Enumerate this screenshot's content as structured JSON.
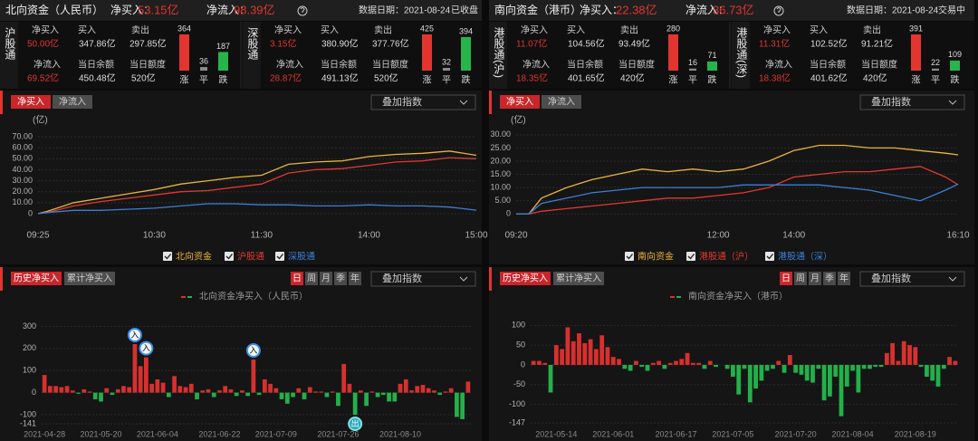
{
  "panels": [
    {
      "header": {
        "title": "北向资金（人民币）",
        "net_buy_label": "净买入：",
        "net_buy": "53.15亿",
        "net_inflow_label": "净流入：",
        "net_inflow": "98.39亿",
        "date": "数据日期：2021-08-24",
        "status": "已收盘"
      },
      "stats": [
        {
          "name": "沪股通",
          "net_buy": {
            "label": "净买入",
            "value": "50.00亿"
          },
          "buy": {
            "label": "买入",
            "value": "347.86亿"
          },
          "sell": {
            "label": "卖出",
            "value": "297.85亿"
          },
          "net_inflow": {
            "label": "净流入",
            "value": "69.52亿"
          },
          "balance": {
            "label": "当日余额",
            "value": "450.48亿"
          },
          "quota": {
            "label": "当日额度",
            "value": "520亿"
          },
          "breadth": {
            "labels": [
              "涨",
              "平",
              "跌"
            ],
            "values": [
              364,
              36,
              187
            ]
          }
        },
        {
          "name": "深股通",
          "net_buy": {
            "label": "净买入",
            "value": "3.15亿"
          },
          "buy": {
            "label": "买入",
            "value": "380.90亿"
          },
          "sell": {
            "label": "卖出",
            "value": "377.76亿"
          },
          "net_inflow": {
            "label": "净流入",
            "value": "28.87亿"
          },
          "balance": {
            "label": "当日余额",
            "value": "491.13亿"
          },
          "quota": {
            "label": "当日额度",
            "value": "520亿"
          },
          "breadth": {
            "labels": [
              "涨",
              "平",
              "跌"
            ],
            "values": [
              425,
              32,
              394
            ]
          }
        }
      ],
      "line_chart": {
        "type": "line",
        "tabs": [
          "净买入",
          "净流入"
        ],
        "overlay": "叠加指数",
        "unit": "(亿)",
        "x": [
          "09:25",
          "09:30",
          "09:45",
          "10:00",
          "10:15",
          "10:30",
          "10:45",
          "11:00",
          "11:15",
          "11:30",
          "13:15",
          "13:30",
          "13:45",
          "14:00",
          "14:15",
          "14:30",
          "14:45",
          "15:00"
        ],
        "xticks": [
          "09:25",
          "10:30",
          "11:30",
          "14:00",
          "15:00"
        ],
        "ylim": [
          -5,
          75
        ],
        "yticks": [
          0,
          {
            "value": 10,
            "label": "10.00"
          },
          {
            "value": 20,
            "label": "20.00"
          },
          {
            "value": 30,
            "label": "30.00"
          },
          {
            "value": 40,
            "label": "40.00"
          },
          {
            "value": 50,
            "label": "50.00"
          },
          {
            "value": 60,
            "label": "60.00"
          },
          {
            "value": 70,
            "label": "70.00"
          }
        ],
        "grid": true,
        "series": [
          {
            "name": "北向资金",
            "color": "#e8b43c",
            "values": [
              0,
              2,
              10,
              14,
              18,
              22,
              27,
              30,
              33,
              35,
              45,
              47,
              48,
              52,
              54,
              55,
              57,
              53.15
            ]
          },
          {
            "name": "沪股通",
            "color": "#dd3a30",
            "values": [
              0,
              1,
              7,
              11,
              14,
              17,
              20,
              21,
              24,
              27,
              37,
              40,
              41,
              44,
              47,
              48,
              51,
              50
            ]
          },
          {
            "name": "深股通",
            "color": "#3c7fd6",
            "values": [
              0,
              1,
              3,
              3,
              4,
              5,
              7,
              9,
              9,
              8,
              8,
              7,
              7,
              8,
              7,
              7,
              6,
              3.15
            ]
          }
        ]
      },
      "bar_chart": {
        "type": "bar",
        "tabs": [
          "历史净买入",
          "累计净买入"
        ],
        "periods": [
          "日",
          "周",
          "月",
          "季",
          "年"
        ],
        "overlay": "叠加指数",
        "legend": "北向资金净买入（人民币）",
        "categories": [
          "2021-04-28",
          null,
          null,
          null,
          null,
          null,
          null,
          null,
          null,
          null,
          "2021-05-20",
          null,
          null,
          null,
          null,
          null,
          null,
          null,
          null,
          null,
          "2021-06-04",
          null,
          null,
          null,
          null,
          null,
          null,
          null,
          null,
          null,
          null,
          "2021-06-22",
          null,
          null,
          null,
          null,
          null,
          null,
          null,
          null,
          null,
          "2021-07-09",
          null,
          null,
          null,
          null,
          null,
          null,
          null,
          null,
          null,
          null,
          "2021-07-26",
          null,
          null,
          null,
          null,
          null,
          null,
          null,
          null,
          null,
          null,
          "2021-08-10",
          null,
          null,
          null,
          null,
          null,
          null,
          null,
          null,
          null,
          null,
          null,
          null
        ],
        "values": [
          80,
          30,
          30,
          25,
          30,
          10,
          -5,
          15,
          5,
          -30,
          -40,
          20,
          -10,
          15,
          30,
          25,
          220,
          120,
          160,
          40,
          60,
          45,
          -20,
          75,
          30,
          25,
          40,
          -30,
          10,
          15,
          -20,
          10,
          30,
          15,
          -15,
          10,
          -15,
          150,
          -10,
          60,
          40,
          20,
          -30,
          -50,
          -20,
          20,
          -30,
          25,
          5,
          5,
          -20,
          5,
          -60,
          130,
          40,
          -100,
          10,
          -60,
          5,
          -20,
          -10,
          -40,
          -40,
          40,
          60,
          10,
          30,
          35,
          20,
          10,
          -10,
          5,
          20,
          -110,
          -120,
          50
        ],
        "markers": [
          null,
          null,
          null,
          null,
          null,
          null,
          null,
          null,
          null,
          null,
          null,
          null,
          null,
          null,
          null,
          null,
          "入",
          null,
          "入",
          null,
          null,
          null,
          null,
          null,
          null,
          null,
          null,
          null,
          null,
          null,
          null,
          null,
          null,
          null,
          null,
          null,
          null,
          "入",
          null,
          null,
          null,
          null,
          null,
          null,
          null,
          null,
          null,
          null,
          null,
          null,
          null,
          null,
          null,
          null,
          null,
          "出",
          null,
          null,
          null,
          null,
          null,
          null,
          null,
          null,
          null,
          null,
          null,
          null,
          null,
          null,
          null,
          null,
          null,
          null,
          null,
          null
        ],
        "ylim": [
          -141,
          310
        ],
        "yticks": [
          -141,
          -100,
          0,
          100,
          200,
          300
        ],
        "grid": true,
        "colors": {
          "positive": "#d8302e",
          "negative": "#23b04a"
        }
      }
    },
    {
      "header": {
        "title": "南向资金（港币）",
        "net_buy_label": "净买入：",
        "net_buy": "22.38亿",
        "net_inflow_label": "净流入：",
        "net_inflow": "36.73亿",
        "date": "数据日期：2021-08-24",
        "status": "交易中"
      },
      "stats": [
        {
          "name": "港股通(沪)",
          "net_buy": {
            "label": "净买入",
            "value": "11.07亿"
          },
          "buy": {
            "label": "买入",
            "value": "104.56亿"
          },
          "sell": {
            "label": "卖出",
            "value": "93.49亿"
          },
          "net_inflow": {
            "label": "净流入",
            "value": "18.35亿"
          },
          "balance": {
            "label": "当日余额",
            "value": "401.65亿"
          },
          "quota": {
            "label": "当日额度",
            "value": "420亿"
          },
          "breadth": {
            "labels": [
              "涨",
              "平",
              "跌"
            ],
            "values": [
              280,
              16,
              71
            ]
          }
        },
        {
          "name": "港股通(深)",
          "net_buy": {
            "label": "净买入",
            "value": "11.31亿"
          },
          "buy": {
            "label": "买入",
            "value": "102.52亿"
          },
          "sell": {
            "label": "卖出",
            "value": "91.21亿"
          },
          "net_inflow": {
            "label": "净流入",
            "value": "18.38亿"
          },
          "balance": {
            "label": "当日余额",
            "value": "401.62亿"
          },
          "quota": {
            "label": "当日额度",
            "value": "420亿"
          },
          "breadth": {
            "labels": [
              "涨",
              "平",
              "跌"
            ],
            "values": [
              391,
              22,
              109
            ]
          }
        }
      ],
      "line_chart": {
        "type": "line",
        "tabs": [
          "净买入",
          "净流入"
        ],
        "overlay": "叠加指数",
        "unit": "(亿)",
        "x": [
          "09:20",
          "09:30",
          "09:40",
          "10:00",
          "10:20",
          "10:40",
          "11:00",
          "11:20",
          "11:40",
          "12:00",
          "13:20",
          "13:40",
          "14:00",
          "14:20",
          "14:40",
          "15:00",
          "15:20",
          "15:40",
          "16:00",
          "16:10"
        ],
        "xticks": [
          "09:20",
          "12:00",
          "14:00",
          "16:10"
        ],
        "ylim": [
          -3,
          32
        ],
        "yticks": [
          0,
          {
            "value": 5,
            "label": "5.00"
          },
          {
            "value": 10,
            "label": "10.00"
          },
          {
            "value": 15,
            "label": "15.00"
          },
          {
            "value": 20,
            "label": "20.00"
          },
          {
            "value": 25,
            "label": "25.00"
          },
          {
            "value": 30,
            "label": "30.00"
          }
        ],
        "grid": true,
        "series": [
          {
            "name": "南向资金",
            "color": "#e8b43c",
            "values": [
              0,
              0,
              6,
              10,
              13,
              15,
              17,
              16,
              17,
              16,
              17,
              20,
              24,
              26,
              26,
              25,
              25,
              24,
              23,
              22.38
            ]
          },
          {
            "name": "港股通（沪）",
            "color": "#dd3a30",
            "values": [
              0,
              0,
              1,
              2,
              3,
              4,
              5,
              6,
              6,
              7,
              8,
              10,
              14,
              15,
              16,
              16,
              17,
              18,
              14,
              11.07
            ]
          },
          {
            "name": "港股通（深）",
            "color": "#3c7fd6",
            "values": [
              0,
              0,
              4,
              6,
              8,
              9,
              10,
              10,
              10,
              10,
              11,
              11,
              11,
              11,
              10,
              9,
              7,
              5,
              9,
              11.31
            ]
          }
        ]
      },
      "bar_chart": {
        "type": "bar",
        "tabs": [
          "历史净买入",
          "累计净买入"
        ],
        "periods": [
          "日",
          "周",
          "月",
          "季",
          "年"
        ],
        "overlay": "叠加指数",
        "legend": "南向资金净买入（港币）",
        "categories": [
          null,
          null,
          null,
          null,
          "2021-05-14",
          null,
          null,
          null,
          null,
          null,
          null,
          null,
          null,
          null,
          "2021-06-01",
          null,
          null,
          null,
          null,
          null,
          null,
          null,
          null,
          null,
          null,
          "2021-06-17",
          null,
          null,
          null,
          null,
          null,
          null,
          null,
          null,
          null,
          "2021-07-05",
          null,
          null,
          null,
          null,
          null,
          null,
          null,
          null,
          null,
          null,
          "2021-07-20",
          null,
          null,
          null,
          null,
          null,
          null,
          null,
          null,
          null,
          "2021-08-04",
          null,
          null,
          null,
          null,
          null,
          null,
          null,
          null,
          null,
          null,
          "2021-08-19",
          null,
          null,
          null,
          null,
          null,
          null,
          null
        ],
        "values": [
          10,
          10,
          5,
          -70,
          50,
          40,
          95,
          60,
          80,
          55,
          65,
          40,
          75,
          45,
          20,
          15,
          -10,
          -15,
          10,
          -5,
          -15,
          5,
          10,
          -10,
          5,
          10,
          15,
          30,
          5,
          5,
          -10,
          10,
          -5,
          0,
          -10,
          -30,
          -75,
          -10,
          -95,
          -60,
          -40,
          -15,
          -10,
          10,
          -20,
          25,
          -20,
          -25,
          -40,
          -45,
          -10,
          -90,
          -80,
          -30,
          -130,
          -55,
          -15,
          -70,
          -10,
          -10,
          -5,
          -5,
          30,
          55,
          10,
          60,
          50,
          45,
          -5,
          -30,
          -40,
          -55,
          -10,
          20,
          10
        ],
        "ylim": [
          -147,
          110
        ],
        "yticks": [
          -147,
          -100,
          -50,
          0,
          50,
          100
        ],
        "grid": true,
        "colors": {
          "positive": "#d8302e",
          "negative": "#23b04a"
        }
      }
    }
  ]
}
